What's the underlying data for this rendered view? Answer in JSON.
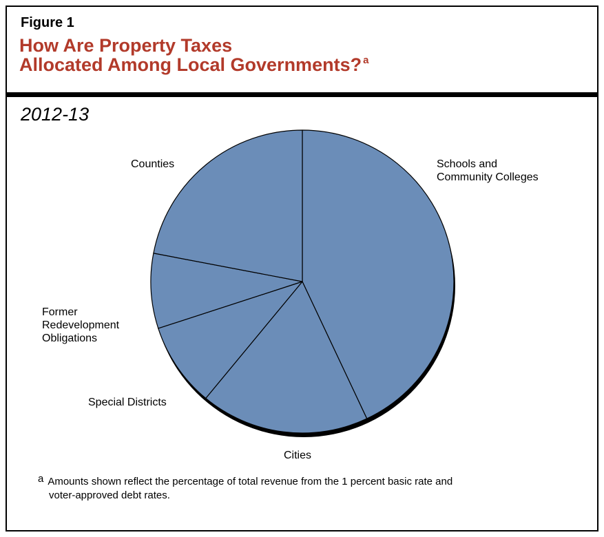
{
  "figure": {
    "label": "Figure 1",
    "title_line1": "How Are Property Taxes",
    "title_line2": "Allocated Among Local Governments?",
    "title_footnote_mark": "a",
    "subtitle": "2012-13",
    "footnote_mark": "a",
    "footnote_line1": "Amounts shown reflect the percentage of total revenue from the 1 percent basic rate and",
    "footnote_line2": "voter-approved debt rates."
  },
  "colors": {
    "title": "#b23a2a",
    "slice_fill": "#6b8db8",
    "slice_edge": "#000000",
    "shadow": "#000000"
  },
  "chart_data": {
    "type": "pie",
    "start_angle_deg": 0,
    "direction": "clockwise",
    "units": "percent of total revenue",
    "slices": [
      {
        "label_lines": [
          "Schools and",
          "Community Colleges"
        ],
        "value": 43
      },
      {
        "label_lines": [
          "Cities"
        ],
        "value": 18
      },
      {
        "label_lines": [
          "Special Districts"
        ],
        "value": 9
      },
      {
        "label_lines": [
          "Former",
          "Redevelopment",
          "Obligations"
        ],
        "value": 8
      },
      {
        "label_lines": [
          "Counties"
        ],
        "value": 22
      }
    ]
  }
}
